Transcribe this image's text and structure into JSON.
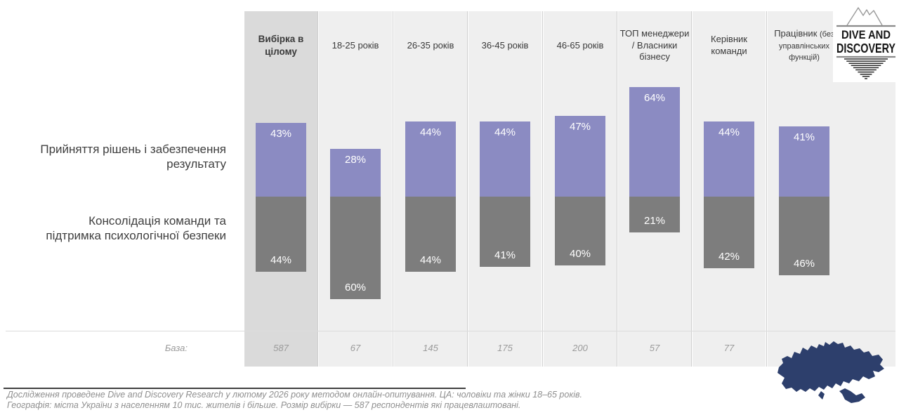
{
  "brand": {
    "line1": "DIVE AND",
    "line2": "DISCOVERY"
  },
  "icons": {
    "logo": "dive-and-discovery-iceberg-logo",
    "map": "ukraine-map-silhouette"
  },
  "row_labels": {
    "decision": "Прийняття рішень і забезпечення\nрезультату",
    "consolidation": "Консолідація команди та\nпідтримка психологічної безпеки"
  },
  "columns": [
    {
      "label": "Вибірка в\nцілому",
      "label_small": "",
      "bold": true
    },
    {
      "label": "18-25 років",
      "label_small": "",
      "bold": false
    },
    {
      "label": "26-35 років",
      "label_small": "",
      "bold": false
    },
    {
      "label": "36-45 років",
      "label_small": "",
      "bold": false
    },
    {
      "label": "46-65 років",
      "label_small": "",
      "bold": false
    },
    {
      "label": "ТОП менеджери\n/ Власники\nбізнесу",
      "label_small": "",
      "bold": false
    },
    {
      "label": "Керівник\nкоманди",
      "label_small": "",
      "bold": false
    },
    {
      "label": "Працівник",
      "label_small": "(без управлінських функцій)",
      "bold": false
    }
  ],
  "chart_data": {
    "type": "bar",
    "stacked": true,
    "categories": [
      "Вибірка в цілому",
      "18-25 років",
      "26-35 років",
      "36-45 років",
      "46-65 років",
      "ТОП менеджери / Власники бізнесу",
      "Керівник команди",
      "Працівник (без управлінських функцій)"
    ],
    "series": [
      {
        "name": "Прийняття рішень і забезпечення результату",
        "color": "#8b8bc2",
        "values": [
          43,
          28,
          44,
          44,
          47,
          64,
          44,
          41
        ]
      },
      {
        "name": "Консолідація команди та підтримка психологічної безпеки",
        "color": "#7d7d7d",
        "values": [
          44,
          60,
          44,
          41,
          40,
          21,
          42,
          46
        ]
      }
    ],
    "value_suffix": "%",
    "base_label": "База:",
    "base_values": [
      "587",
      "67",
      "145",
      "175",
      "200",
      "57",
      "77",
      ""
    ],
    "layout": {
      "orientation": "vertical",
      "shared_baseline_between_series": true,
      "highlight_first_column": true,
      "legend": "row labels at left",
      "grid": false
    }
  },
  "footnote": {
    "line1": "Дослідження проведене Dive and Discovery Research у лютому  2026 року  методом онлайн-опитування. ЦА: чоловіки та жінки 18–65 років.",
    "line2": "Географія: міста України з населенням 10 тис. жителів і більше. Розмір вибірки — 587 респондентів які працевлаштовані."
  },
  "colors": {
    "series1_purple": "#8b8bc2",
    "series2_gray": "#7d7d7d",
    "panel": "#efefef",
    "panel_highlight": "#dadada",
    "map_navy": "#2d3f6c"
  }
}
